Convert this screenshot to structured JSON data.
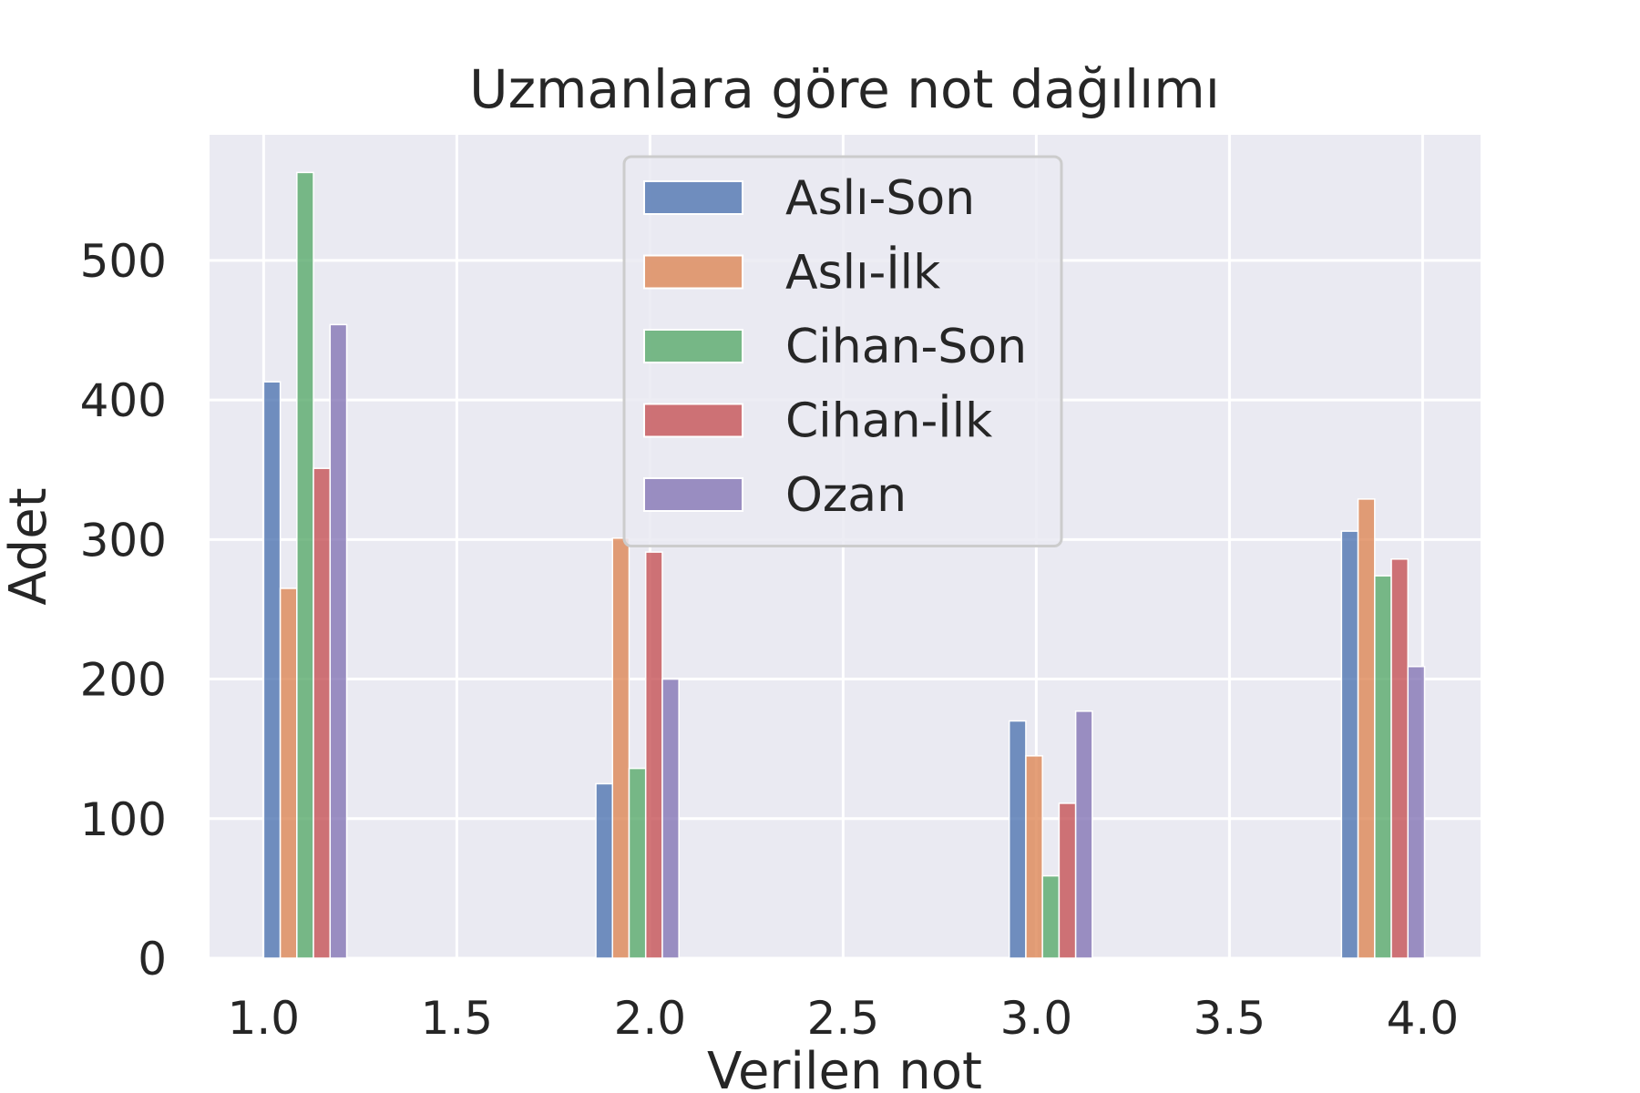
{
  "chart_data": {
    "type": "bar",
    "title": "Uzmanlara göre not dağılımı",
    "xlabel": "Verilen not",
    "ylabel": "Adet",
    "xlim": [
      0.86,
      4.15
    ],
    "ylim": [
      0,
      590
    ],
    "x_ticks": [
      "1.0",
      "1.5",
      "2.0",
      "2.5",
      "3.0",
      "3.5",
      "4.0"
    ],
    "x_tick_values": [
      1.0,
      1.5,
      2.0,
      2.5,
      3.0,
      3.5,
      4.0
    ],
    "y_ticks": [
      "0",
      "100",
      "200",
      "300",
      "400",
      "500"
    ],
    "y_tick_values": [
      0,
      100,
      200,
      300,
      400,
      500
    ],
    "grid": true,
    "legend_position": "top-center",
    "group_starts": [
      1.0,
      1.86,
      2.93,
      3.79
    ],
    "bar_width": 0.043,
    "series": [
      {
        "name": "Aslı-Son",
        "color": "#4c72b0",
        "values": [
          413,
          125,
          170,
          306
        ]
      },
      {
        "name": "Aslı-İlk",
        "color": "#dd8452",
        "values": [
          265,
          301,
          145,
          329
        ]
      },
      {
        "name": "Cihan-Son",
        "color": "#55a868",
        "values": [
          563,
          136,
          59,
          274
        ]
      },
      {
        "name": "Cihan-İlk",
        "color": "#c44e52",
        "values": [
          351,
          291,
          111,
          286
        ]
      },
      {
        "name": "Ozan",
        "color": "#8172b3",
        "values": [
          454,
          200,
          177,
          209
        ]
      }
    ]
  }
}
